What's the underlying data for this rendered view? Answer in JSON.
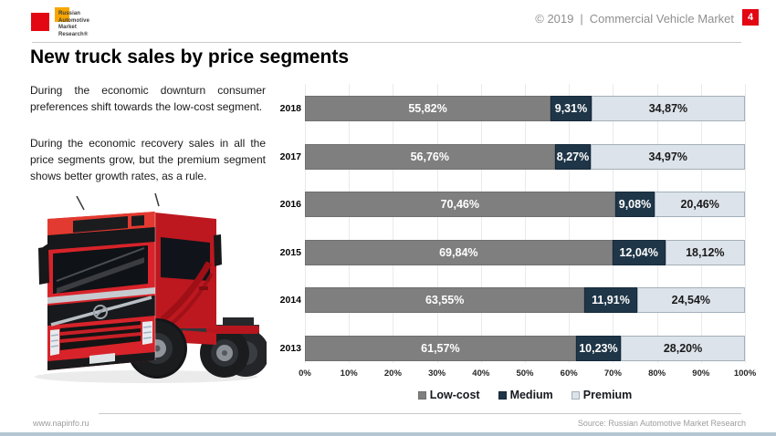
{
  "header": {
    "logo_lines": [
      "Russian",
      "Automotive",
      "Market",
      "Research®"
    ],
    "copyright": "© 2019",
    "divider": "|",
    "subtitle": "Commercial Vehicle Market",
    "page_number": "4",
    "accent_color": "#E30613"
  },
  "title": "New truck sales by price segments",
  "commentary": {
    "paragraph1": "During the economic downturn consumer preferences shift towards the low-cost segment.",
    "paragraph2": "During the economic recovery sales in all the price segments grow, but the premium segment shows better growth rates, as a rule."
  },
  "truck_image": {
    "description": "Red Volvo FH tractor unit, three-quarter front view"
  },
  "chart_data": {
    "type": "bar",
    "orientation": "horizontal",
    "stacked": true,
    "title": "New truck sales by price segments",
    "categories": [
      "2018",
      "2017",
      "2016",
      "2015",
      "2014",
      "2013"
    ],
    "series": [
      {
        "name": "Low-cost",
        "color": "#7F7F7F",
        "border": "#6F6F6F",
        "label_color": "#FFFFFF",
        "values": [
          55.82,
          56.76,
          70.46,
          69.84,
          63.55,
          61.57
        ],
        "labels": [
          "55,82%",
          "56,76%",
          "70,46%",
          "69,84%",
          "63,55%",
          "61,57%"
        ]
      },
      {
        "name": "Medium",
        "color": "#1F3648",
        "border": "#16293A",
        "label_color": "#FFFFFF",
        "values": [
          9.31,
          8.27,
          9.08,
          12.04,
          11.91,
          10.23
        ],
        "labels": [
          "9,31%",
          "8,27%",
          "9,08%",
          "12,04%",
          "11,91%",
          "10,23%"
        ]
      },
      {
        "name": "Premium",
        "color": "#DCE3EA",
        "border": "#A3AFB8",
        "label_color": "#1A1A1A",
        "values": [
          34.87,
          34.97,
          20.46,
          18.12,
          24.54,
          28.2
        ],
        "labels": [
          "34,87%",
          "34,97%",
          "20,46%",
          "18,12%",
          "24,54%",
          "28,20%"
        ]
      }
    ],
    "x_ticks": [
      "0%",
      "10%",
      "20%",
      "30%",
      "40%",
      "50%",
      "60%",
      "70%",
      "80%",
      "90%",
      "100%"
    ],
    "xlim": [
      0,
      100
    ],
    "grid": true,
    "grid_color": "#E9EAEC",
    "legend": [
      "Low-cost",
      "Medium",
      "Premium"
    ],
    "legend_position": "bottom"
  },
  "footer": {
    "website": "www.napinfo.ru",
    "source": "Source: Russian Automotive Market Research",
    "bottom_bar_color": "#B4C6D3"
  }
}
